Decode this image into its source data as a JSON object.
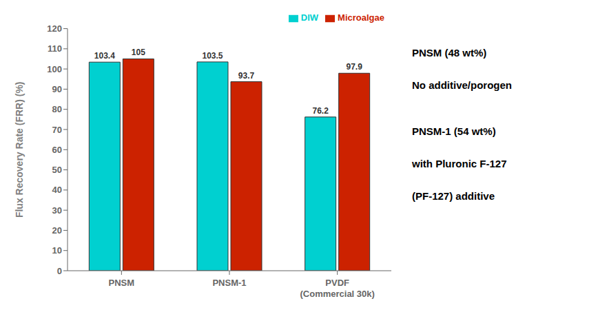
{
  "chart_data": {
    "type": "bar",
    "categories": [
      "PNSM",
      "PNSM-1",
      "PVDF\n(Commercial 30k)"
    ],
    "series": [
      {
        "name": "DIW",
        "color": "#00D0D0",
        "values": [
          103.4,
          103.5,
          76.2
        ]
      },
      {
        "name": "Microalgae",
        "color": "#CC2200",
        "values": [
          105.0,
          93.7,
          97.9
        ]
      }
    ],
    "ylabel": "Flux Recovery Rate (FRR) (%)",
    "ylim": [
      0,
      120
    ],
    "yticks": [
      0,
      10,
      20,
      30,
      40,
      50,
      60,
      70,
      80,
      90,
      100,
      110,
      120
    ],
    "grid": false,
    "legend": "upper right",
    "data_labels": true,
    "annotations": [
      [
        "PNSM (48 wt%)",
        "No additive/porogen"
      ],
      [
        "PNSM-1 (54 wt%)",
        "with Pluronic F-127",
        "(PF-127) additive"
      ]
    ]
  }
}
